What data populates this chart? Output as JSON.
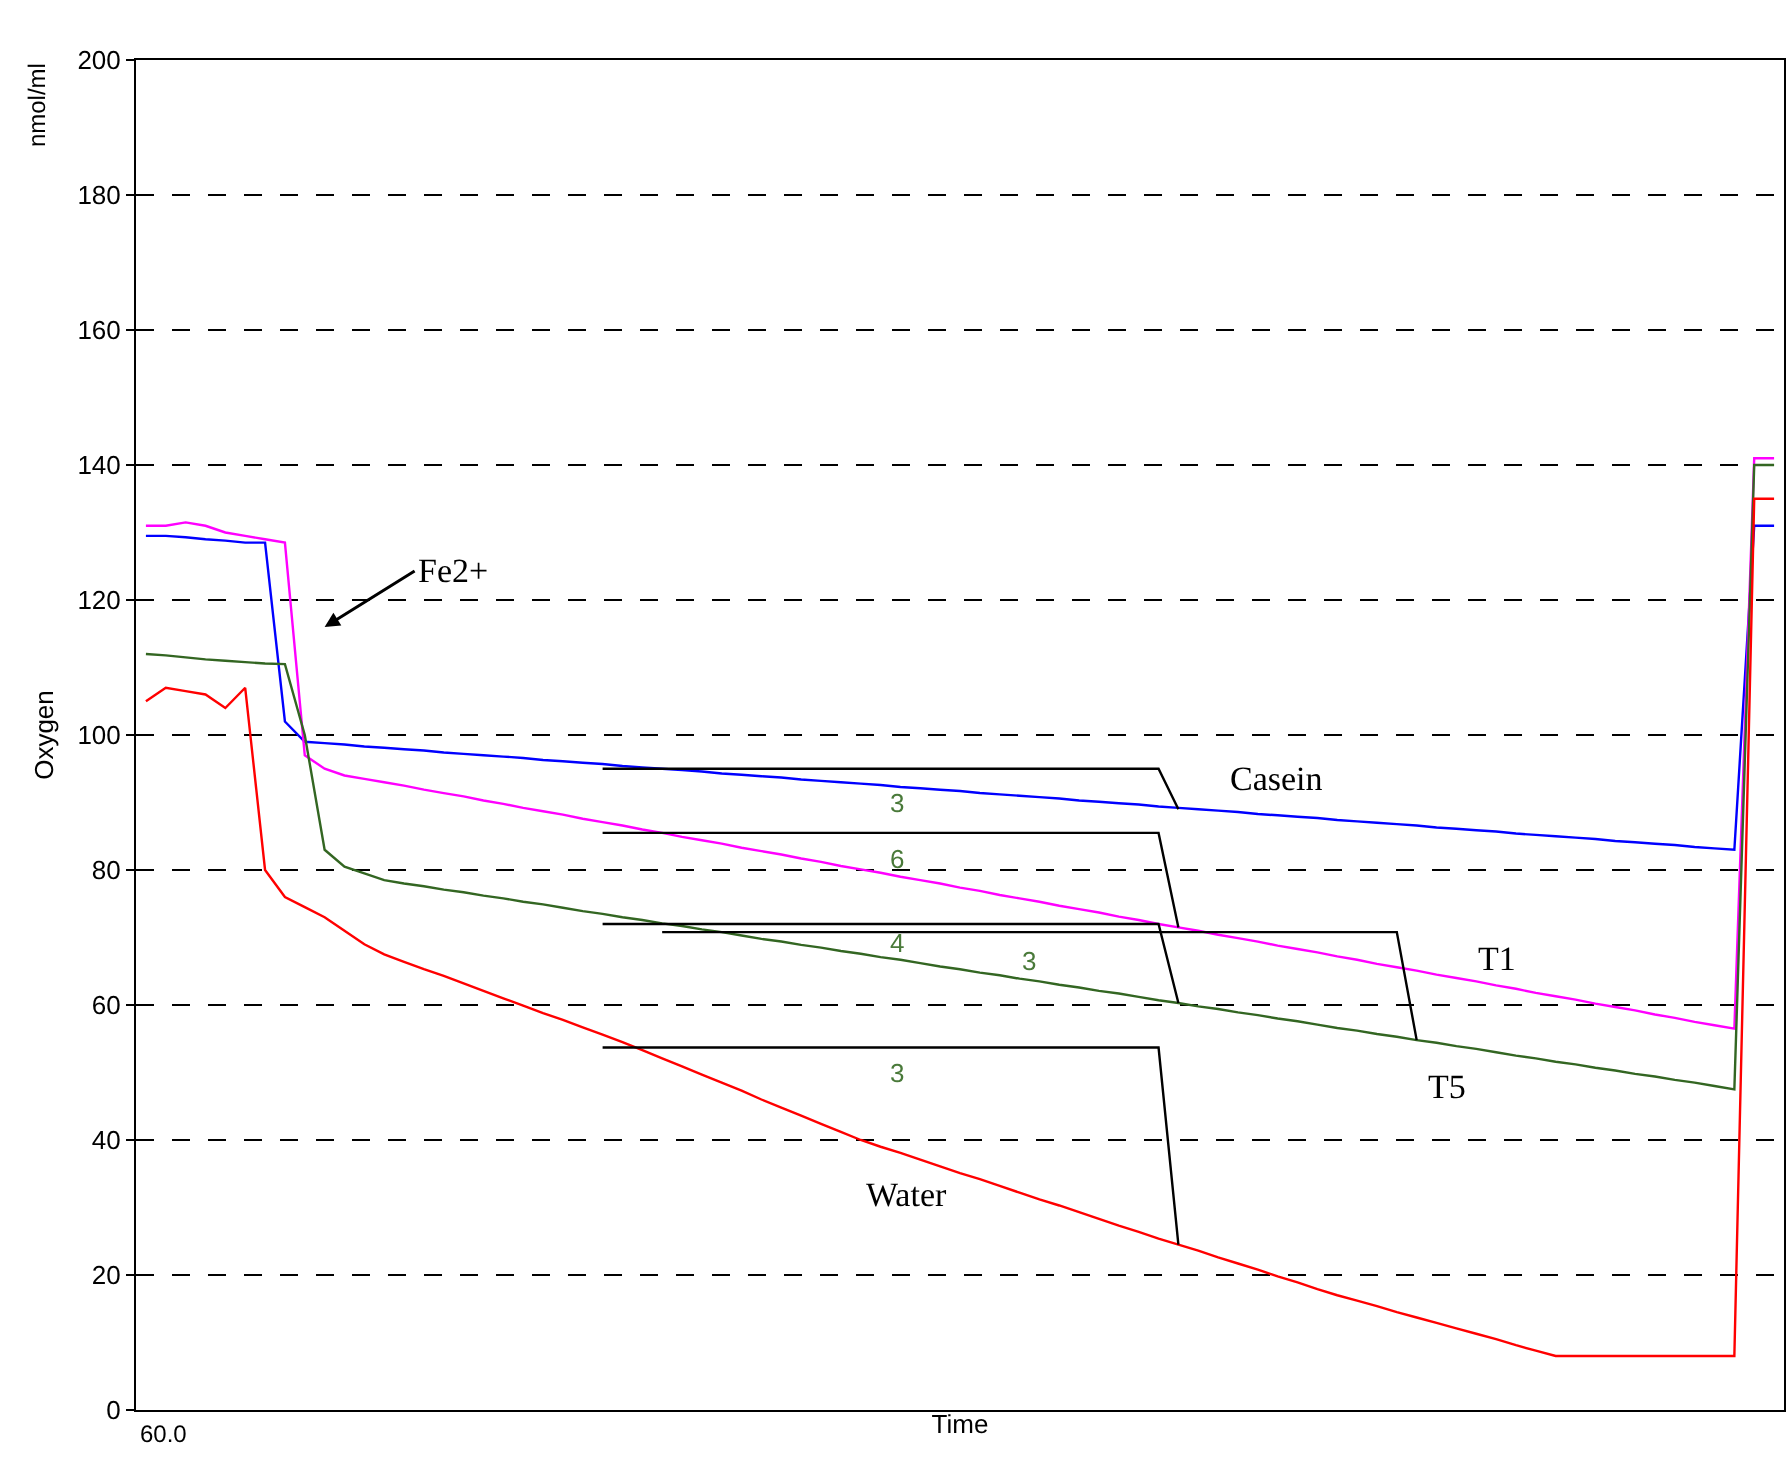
{
  "chart_data": {
    "type": "line",
    "xlabel": "Time",
    "ylabel": "Oxygen",
    "categories": [
      null,
      null,
      null,
      null,
      null,
      null,
      null,
      null,
      null,
      null,
      null,
      null,
      null,
      null,
      null,
      null,
      null,
      null,
      null,
      null,
      null,
      null,
      null,
      null,
      null,
      null,
      null,
      null,
      null,
      null,
      null,
      null,
      null,
      null,
      null,
      null,
      null,
      null,
      null,
      null,
      null,
      null,
      null,
      null,
      null,
      null,
      null,
      null,
      null,
      null,
      null,
      null,
      null,
      null,
      null,
      null,
      null,
      null,
      null,
      null,
      null,
      null,
      null,
      null,
      null,
      null,
      null,
      null,
      null,
      null,
      null,
      null,
      null,
      null,
      null,
      null,
      null,
      null,
      null,
      null,
      null,
      null,
      null
    ],
    "ylim": [
      0,
      200
    ],
    "yticks": [
      0,
      20,
      40,
      60,
      80,
      100,
      120,
      140,
      160,
      180,
      200
    ],
    "grid": "y",
    "line_style": "solid",
    "tick_labels": "y",
    "series": [
      {
        "color": "#0000ff",
        "values": [
          129.5,
          129.5,
          129.3,
          129,
          128.8,
          128.5,
          128.5,
          102,
          99,
          98.8,
          98.6,
          98.3,
          98.1,
          97.9,
          97.7,
          97.4,
          97.2,
          97,
          96.8,
          96.6,
          96.3,
          96.1,
          95.9,
          95.7,
          95.4,
          95.2,
          95,
          94.8,
          94.6,
          94.3,
          94.1,
          93.9,
          93.7,
          93.4,
          93.2,
          93,
          92.8,
          92.6,
          92.3,
          92.1,
          91.9,
          91.7,
          91.4,
          91.2,
          91,
          90.8,
          90.6,
          90.3,
          90.1,
          89.9,
          89.7,
          89.4,
          89.2,
          89,
          88.8,
          88.6,
          88.3,
          88.1,
          87.9,
          87.7,
          87.4,
          87.2,
          87,
          86.8,
          86.6,
          86.3,
          86.1,
          85.9,
          85.7,
          85.4,
          85.2,
          85,
          84.8,
          84.6,
          84.3,
          84.1,
          83.9,
          83.7,
          83.4,
          83.2,
          83,
          131,
          131
        ]
      },
      {
        "color": "#ff00ff",
        "values": [
          131,
          131,
          131.5,
          131,
          130,
          129.5,
          129,
          128.5,
          97,
          95,
          94,
          93.5,
          93,
          92.5,
          91.9,
          91.4,
          90.9,
          90.3,
          89.8,
          89.2,
          88.7,
          88.2,
          87.6,
          87.1,
          86.6,
          86,
          85.5,
          84.9,
          84.4,
          83.9,
          83.3,
          82.8,
          82.3,
          81.7,
          81.2,
          80.6,
          80.1,
          79.6,
          79,
          78.5,
          78,
          77.4,
          76.9,
          76.3,
          75.8,
          75.3,
          74.7,
          74.2,
          73.7,
          73.1,
          72.6,
          72,
          71.5,
          71,
          70.4,
          69.9,
          69.4,
          68.8,
          68.3,
          67.8,
          67.2,
          66.7,
          66.1,
          65.6,
          65.1,
          64.5,
          64,
          63.5,
          62.9,
          62.4,
          61.8,
          61.3,
          60.8,
          60.2,
          59.7,
          59.2,
          58.6,
          58.1,
          57.5,
          57,
          56.5,
          141,
          141
        ]
      },
      {
        "color": "#336622",
        "values": [
          112,
          111.8,
          111.5,
          111.2,
          111,
          110.8,
          110.6,
          110.5,
          100,
          83,
          80.5,
          79.5,
          78.5,
          78,
          77.6,
          77.1,
          76.7,
          76.2,
          75.8,
          75.3,
          74.9,
          74.4,
          73.9,
          73.5,
          73,
          72.6,
          72.1,
          71.7,
          71.2,
          70.8,
          70.3,
          69.8,
          69.4,
          68.9,
          68.5,
          68,
          67.6,
          67.1,
          66.7,
          66.2,
          65.7,
          65.3,
          64.8,
          64.4,
          63.9,
          63.5,
          63,
          62.6,
          62.1,
          61.7,
          61.2,
          60.7,
          60.3,
          59.8,
          59.4,
          58.9,
          58.5,
          58,
          57.6,
          57.1,
          56.6,
          56.2,
          55.7,
          55.3,
          54.8,
          54.4,
          53.9,
          53.5,
          53,
          52.5,
          52.1,
          51.6,
          51.2,
          50.7,
          50.3,
          49.8,
          49.4,
          48.9,
          48.5,
          48,
          47.5,
          140,
          140
        ]
      },
      {
        "color": "#ff0000",
        "values": [
          105,
          107,
          106.5,
          106,
          104,
          107,
          80,
          76,
          74.5,
          73,
          71,
          69,
          67.5,
          66.4,
          65.3,
          64.3,
          63.2,
          62.1,
          61,
          59.9,
          58.8,
          57.8,
          56.7,
          55.6,
          54.5,
          53.3,
          52.1,
          50.9,
          49.7,
          48.5,
          47.3,
          46,
          44.8,
          43.6,
          42.4,
          41.2,
          40,
          39,
          38.1,
          37.1,
          36.1,
          35.1,
          34.2,
          33.2,
          32.2,
          31.2,
          30.3,
          29.3,
          28.3,
          27.3,
          26.4,
          25.4,
          24.5,
          23.6,
          22.6,
          21.7,
          20.8,
          19.8,
          18.9,
          17.9,
          17,
          16.2,
          15.4,
          14.5,
          13.7,
          12.9,
          12.1,
          11.3,
          10.5,
          9.6,
          8.8,
          8,
          8,
          8,
          8,
          8,
          8,
          8,
          8,
          8,
          8,
          135,
          135
        ]
      },
      {
        "color": "#000000",
        "values": [
          null,
          null,
          null,
          null,
          null,
          null,
          null,
          null,
          null,
          null,
          null,
          null,
          null,
          null,
          null,
          null,
          null,
          null,
          null,
          null,
          null,
          null,
          null,
          95,
          95,
          95,
          95,
          95,
          95,
          95,
          95,
          95,
          95,
          95,
          95,
          95,
          95,
          95,
          95,
          95,
          95,
          95,
          95,
          95,
          95,
          95,
          95,
          95,
          95,
          95,
          95,
          95,
          89,
          null,
          null,
          null,
          null,
          null,
          null,
          null,
          null,
          null,
          null,
          null,
          null,
          null,
          null,
          null,
          null,
          null,
          null,
          null,
          null,
          null,
          null,
          null,
          null,
          null,
          null,
          null,
          null,
          null,
          null
        ]
      },
      {
        "color": "#000000",
        "values": [
          null,
          null,
          null,
          null,
          null,
          null,
          null,
          null,
          null,
          null,
          null,
          null,
          null,
          null,
          null,
          null,
          null,
          null,
          null,
          null,
          null,
          null,
          null,
          85.5,
          85.5,
          85.5,
          85.5,
          85.5,
          85.5,
          85.5,
          85.5,
          85.5,
          85.5,
          85.5,
          85.5,
          85.5,
          85.5,
          85.5,
          85.5,
          85.5,
          85.5,
          85.5,
          85.5,
          85.5,
          85.5,
          85.5,
          85.5,
          85.5,
          85.5,
          85.5,
          85.5,
          85.5,
          71.5,
          null,
          null,
          null,
          null,
          null,
          null,
          null,
          null,
          null,
          null,
          null,
          null,
          null,
          null,
          null,
          null,
          null,
          null,
          null,
          null,
          null,
          null,
          null,
          null,
          null,
          null,
          null,
          null,
          null,
          null
        ]
      },
      {
        "color": "#000000",
        "values": [
          null,
          null,
          null,
          null,
          null,
          null,
          null,
          null,
          null,
          null,
          null,
          null,
          null,
          null,
          null,
          null,
          null,
          null,
          null,
          null,
          null,
          null,
          null,
          72,
          72,
          72,
          72,
          72,
          72,
          72,
          72,
          72,
          72,
          72,
          72,
          72,
          72,
          72,
          72,
          72,
          72,
          72,
          72,
          72,
          72,
          72,
          72,
          72,
          72,
          72,
          72,
          72,
          60.3,
          null,
          null,
          null,
          null,
          null,
          null,
          null,
          null,
          null,
          null,
          null,
          null,
          null,
          null,
          null,
          null,
          null,
          null,
          null,
          null,
          null,
          null,
          null,
          null,
          null,
          null,
          null,
          null,
          null,
          null
        ]
      },
      {
        "color": "#000000",
        "values": [
          null,
          null,
          null,
          null,
          null,
          null,
          null,
          null,
          null,
          null,
          null,
          null,
          null,
          null,
          null,
          null,
          null,
          null,
          null,
          null,
          null,
          null,
          null,
          null,
          null,
          null,
          70.8,
          70.8,
          70.8,
          70.8,
          70.8,
          70.8,
          70.8,
          70.8,
          70.8,
          70.8,
          70.8,
          70.8,
          70.8,
          70.8,
          70.8,
          70.8,
          70.8,
          70.8,
          70.8,
          70.8,
          70.8,
          70.8,
          70.8,
          70.8,
          70.8,
          70.8,
          70.8,
          70.8,
          70.8,
          70.8,
          70.8,
          70.8,
          70.8,
          70.8,
          70.8,
          70.8,
          70.8,
          70.8,
          54.8,
          null,
          null,
          null,
          null,
          null,
          null,
          null,
          null,
          null,
          null,
          null,
          null,
          null,
          null,
          null,
          null,
          null,
          null
        ]
      },
      {
        "color": "#000000",
        "values": [
          null,
          null,
          null,
          null,
          null,
          null,
          null,
          null,
          null,
          null,
          null,
          null,
          null,
          null,
          null,
          null,
          null,
          null,
          null,
          null,
          null,
          null,
          null,
          53.7,
          53.7,
          53.7,
          53.7,
          53.7,
          53.7,
          53.7,
          53.7,
          53.7,
          53.7,
          53.7,
          53.7,
          53.7,
          53.7,
          53.7,
          53.7,
          53.7,
          53.7,
          53.7,
          53.7,
          53.7,
          53.7,
          53.7,
          53.7,
          53.7,
          53.7,
          53.7,
          53.7,
          53.7,
          24.5,
          null,
          null,
          null,
          null,
          null,
          null,
          null,
          null,
          null,
          null,
          null,
          null,
          null,
          null,
          null,
          null,
          null,
          null,
          null,
          null,
          null,
          null,
          null,
          null,
          null,
          null,
          null,
          null,
          null,
          null
        ]
      }
    ],
    "annotations": [
      "nmol/ml",
      "60.0",
      "Fe2+",
      "Casein",
      "T1",
      "T5",
      "Water",
      "3",
      "6",
      "4",
      "3",
      "3"
    ]
  }
}
